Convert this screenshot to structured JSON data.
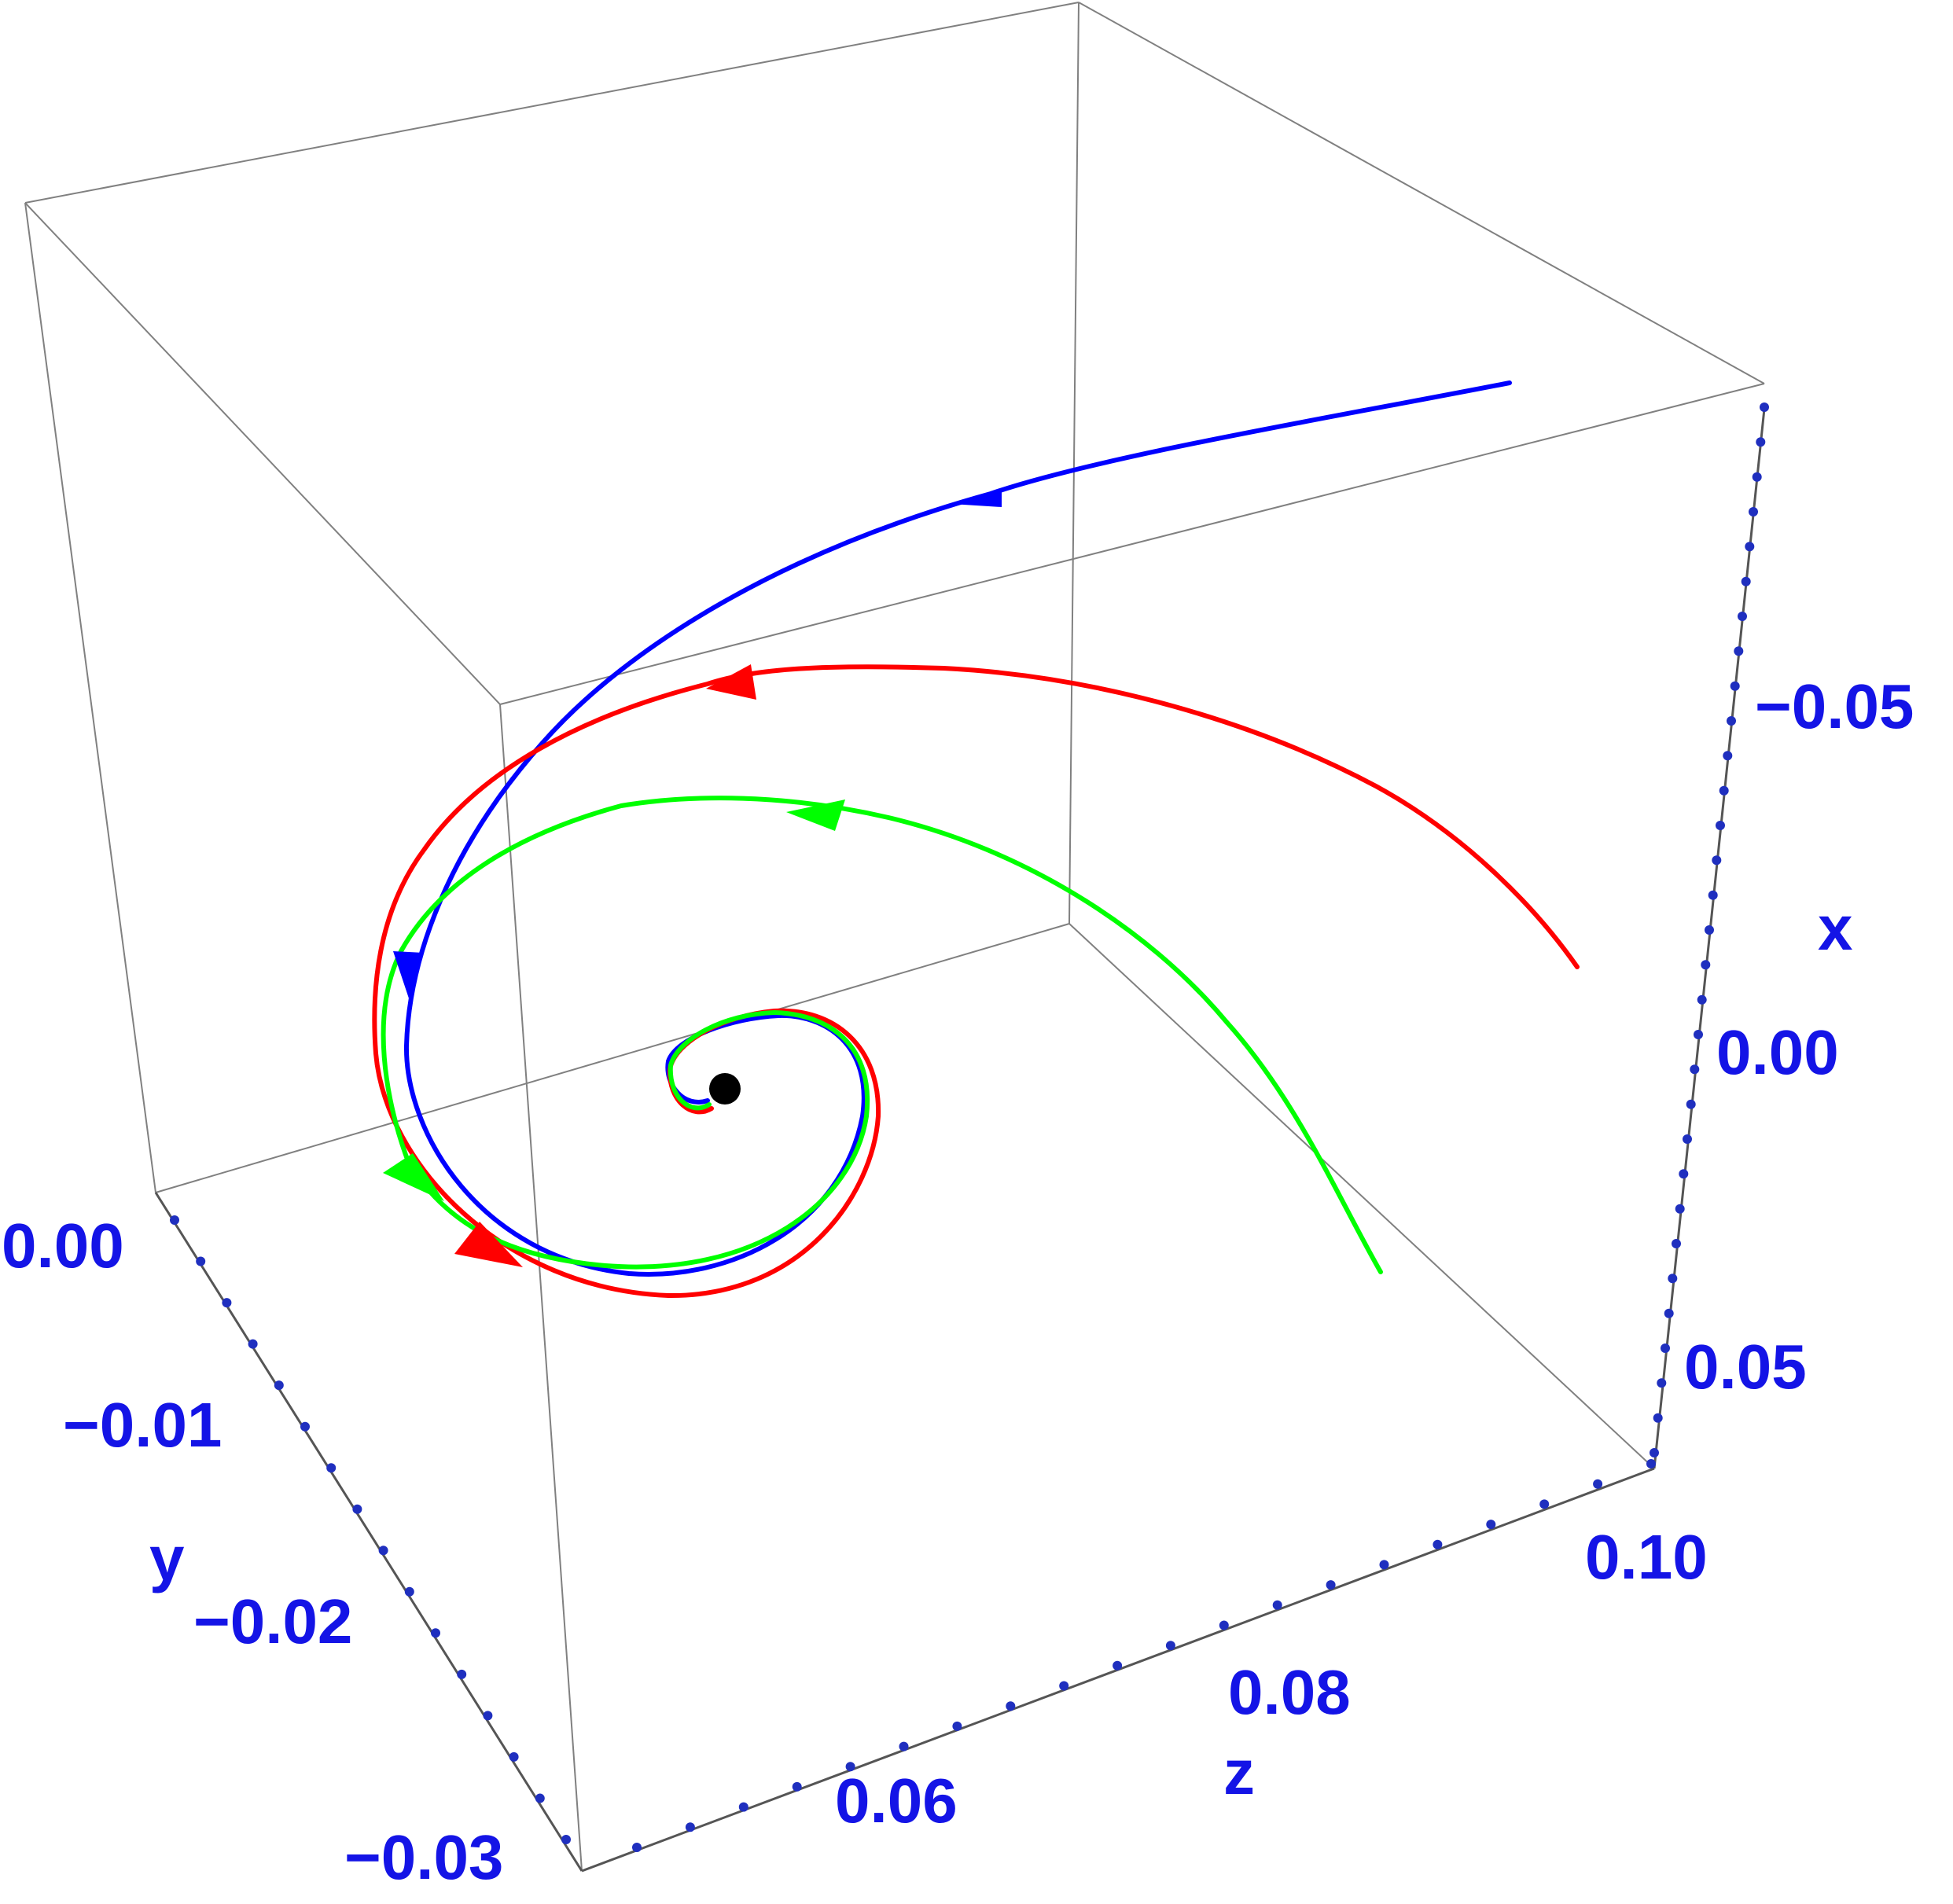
{
  "chart_data": {
    "type": "line",
    "projection": "3d",
    "axes": {
      "x": {
        "label": "x",
        "ticks": [
          -0.05,
          0.0,
          0.05
        ],
        "tick_labels": [
          "−0.05",
          "0.00",
          "0.05"
        ],
        "range": [
          -0.09,
          0.075
        ]
      },
      "y": {
        "label": "y",
        "ticks": [
          0.0,
          -0.01,
          -0.02,
          -0.03
        ],
        "tick_labels": [
          "0.00",
          "−0.01",
          "−0.02",
          "−0.03"
        ],
        "range": [
          0.0,
          -0.031
        ]
      },
      "z": {
        "label": "z",
        "ticks": [
          0.06,
          0.08,
          0.1
        ],
        "tick_labels": [
          "0.06",
          "0.08",
          "0.10"
        ],
        "range": [
          0.0455,
          0.1
        ]
      }
    },
    "series": [
      {
        "color": "#0000ff",
        "start": {
          "x": -0.07,
          "y": -0.005,
          "z": 0.095
        },
        "end": {
          "x": 0.0,
          "y": -0.015,
          "z": 0.07
        }
      },
      {
        "color": "#ff0000",
        "start": {
          "x": -0.02,
          "y": -0.005,
          "z": 0.097
        },
        "end": {
          "x": 0.0,
          "y": -0.015,
          "z": 0.07
        }
      },
      {
        "color": "#00ff00",
        "start": {
          "x": 0.03,
          "y": -0.01,
          "z": 0.09
        },
        "end": {
          "x": 0.0,
          "y": -0.015,
          "z": 0.07
        }
      }
    ],
    "equilibrium": {
      "x": 0.0,
      "y": -0.015,
      "z": 0.07,
      "color": "#000000"
    },
    "box": true,
    "grid": false,
    "legend": null,
    "title": "",
    "colors": {
      "tick_text": "#1414e6",
      "box": "#808080",
      "axis": "#555555",
      "tick_marks": "#1f2fbf"
    }
  }
}
